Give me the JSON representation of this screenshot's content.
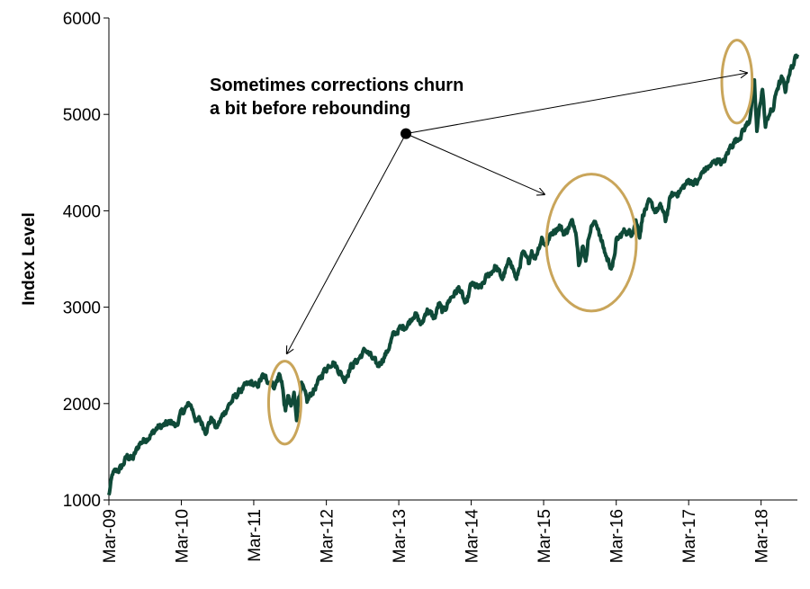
{
  "chart_data": {
    "type": "line",
    "title": "",
    "xlabel": "",
    "ylabel": "Index Level",
    "ylim": [
      1000,
      6000
    ],
    "xlim": [
      "2009-03-01",
      "2018-08-31"
    ],
    "yticks": [
      1000,
      2000,
      3000,
      4000,
      5000,
      6000
    ],
    "xticks": [
      {
        "date": "2009-03-01",
        "label": "Mar-09"
      },
      {
        "date": "2010-03-01",
        "label": "Mar-10"
      },
      {
        "date": "2011-03-01",
        "label": "Mar-11"
      },
      {
        "date": "2012-03-01",
        "label": "Mar-12"
      },
      {
        "date": "2013-03-01",
        "label": "Mar-13"
      },
      {
        "date": "2014-03-01",
        "label": "Mar-14"
      },
      {
        "date": "2015-03-01",
        "label": "Mar-15"
      },
      {
        "date": "2016-03-01",
        "label": "Mar-16"
      },
      {
        "date": "2017-03-01",
        "label": "Mar-17"
      },
      {
        "date": "2018-03-01",
        "label": "Mar-18"
      }
    ],
    "grid": false,
    "legend": "none",
    "line_color": "#0f4a38",
    "highlight_color": "#c9a55a",
    "series": [
      {
        "points": [
          [
            "2009-03-01",
            1050
          ],
          [
            "2009-03-20",
            1270
          ],
          [
            "2009-05-01",
            1330
          ],
          [
            "2009-06-01",
            1450
          ],
          [
            "2009-07-01",
            1430
          ],
          [
            "2009-08-01",
            1580
          ],
          [
            "2009-09-01",
            1630
          ],
          [
            "2009-10-01",
            1680
          ],
          [
            "2009-11-01",
            1750
          ],
          [
            "2009-12-01",
            1770
          ],
          [
            "2010-01-15",
            1810
          ],
          [
            "2010-02-01",
            1760
          ],
          [
            "2010-03-01",
            1900
          ],
          [
            "2010-04-15",
            2000
          ],
          [
            "2010-05-20",
            1800
          ],
          [
            "2010-06-01",
            1840
          ],
          [
            "2010-07-01",
            1720
          ],
          [
            "2010-08-01",
            1850
          ],
          [
            "2010-08-25",
            1740
          ],
          [
            "2010-10-01",
            1900
          ],
          [
            "2010-11-01",
            2000
          ],
          [
            "2010-12-01",
            2080
          ],
          [
            "2011-01-01",
            2150
          ],
          [
            "2011-02-15",
            2220
          ],
          [
            "2011-03-15",
            2170
          ],
          [
            "2011-04-15",
            2280
          ],
          [
            "2011-05-15",
            2240
          ],
          [
            "2011-06-15",
            2180
          ],
          [
            "2011-07-07",
            2300
          ],
          [
            "2011-07-20",
            2240
          ],
          [
            "2011-08-08",
            1900
          ],
          [
            "2011-08-20",
            2080
          ],
          [
            "2011-09-05",
            1950
          ],
          [
            "2011-09-20",
            2100
          ],
          [
            "2011-10-03",
            1860
          ],
          [
            "2011-10-15",
            2080
          ],
          [
            "2011-10-28",
            2200
          ],
          [
            "2011-11-25",
            2020
          ],
          [
            "2011-12-15",
            2100
          ],
          [
            "2012-01-15",
            2200
          ],
          [
            "2012-02-15",
            2330
          ],
          [
            "2012-04-01",
            2440
          ],
          [
            "2012-05-01",
            2350
          ],
          [
            "2012-06-01",
            2250
          ],
          [
            "2012-07-01",
            2380
          ],
          [
            "2012-08-01",
            2440
          ],
          [
            "2012-09-15",
            2560
          ],
          [
            "2012-11-15",
            2390
          ],
          [
            "2012-12-31",
            2530
          ],
          [
            "2013-01-31",
            2700
          ],
          [
            "2013-03-01",
            2770
          ],
          [
            "2013-04-15",
            2820
          ],
          [
            "2013-05-20",
            2940
          ],
          [
            "2013-06-24",
            2810
          ],
          [
            "2013-07-20",
            2980
          ],
          [
            "2013-08-28",
            2880
          ],
          [
            "2013-09-20",
            3040
          ],
          [
            "2013-10-08",
            2940
          ],
          [
            "2013-11-15",
            3090
          ],
          [
            "2013-12-31",
            3200
          ],
          [
            "2014-02-03",
            3010
          ],
          [
            "2014-03-01",
            3240
          ],
          [
            "2014-04-15",
            3190
          ],
          [
            "2014-05-15",
            3300
          ],
          [
            "2014-07-01",
            3420
          ],
          [
            "2014-08-05",
            3300
          ],
          [
            "2014-09-15",
            3500
          ],
          [
            "2014-10-15",
            3280
          ],
          [
            "2014-11-15",
            3560
          ],
          [
            "2014-12-15",
            3460
          ],
          [
            "2014-12-31",
            3600
          ],
          [
            "2015-01-15",
            3500
          ],
          [
            "2015-02-20",
            3720
          ],
          [
            "2015-03-10",
            3640
          ],
          [
            "2015-04-15",
            3780
          ],
          [
            "2015-05-20",
            3840
          ],
          [
            "2015-06-15",
            3760
          ],
          [
            "2015-07-20",
            3880
          ],
          [
            "2015-08-10",
            3820
          ],
          [
            "2015-08-25",
            3480
          ],
          [
            "2015-09-15",
            3620
          ],
          [
            "2015-09-29",
            3500
          ],
          [
            "2015-10-20",
            3800
          ],
          [
            "2015-11-05",
            3880
          ],
          [
            "2015-12-01",
            3830
          ],
          [
            "2015-12-15",
            3700
          ],
          [
            "2016-01-15",
            3500
          ],
          [
            "2016-02-11",
            3400
          ],
          [
            "2016-03-01",
            3680
          ],
          [
            "2016-04-15",
            3800
          ],
          [
            "2016-05-15",
            3760
          ],
          [
            "2016-06-08",
            3900
          ],
          [
            "2016-06-27",
            3750
          ],
          [
            "2016-07-15",
            3980
          ],
          [
            "2016-08-15",
            4080
          ],
          [
            "2016-09-15",
            4000
          ],
          [
            "2016-10-15",
            4040
          ],
          [
            "2016-11-04",
            3900
          ],
          [
            "2016-12-01",
            4150
          ],
          [
            "2017-01-15",
            4200
          ],
          [
            "2017-03-01",
            4310
          ],
          [
            "2017-04-15",
            4290
          ],
          [
            "2017-05-15",
            4420
          ],
          [
            "2017-06-15",
            4460
          ],
          [
            "2017-08-01",
            4540
          ],
          [
            "2017-08-20",
            4480
          ],
          [
            "2017-10-01",
            4680
          ],
          [
            "2017-11-15",
            4780
          ],
          [
            "2017-12-31",
            4930
          ],
          [
            "2018-01-26",
            5310
          ],
          [
            "2018-02-08",
            4820
          ],
          [
            "2018-02-25",
            5130
          ],
          [
            "2018-03-08",
            5270
          ],
          [
            "2018-03-23",
            4870
          ],
          [
            "2018-04-10",
            5010
          ],
          [
            "2018-05-01",
            5050
          ],
          [
            "2018-05-20",
            5270
          ],
          [
            "2018-06-15",
            5370
          ],
          [
            "2018-07-01",
            5250
          ],
          [
            "2018-07-20",
            5430
          ],
          [
            "2018-08-10",
            5520
          ],
          [
            "2018-08-31",
            5620
          ]
        ]
      }
    ],
    "annotations": [
      {
        "text": "Sometimes corrections churn",
        "line": 0
      },
      {
        "text": "a bit before rebounding",
        "line": 1
      }
    ],
    "annotation_origin": [
      "2013-04-06",
      4800
    ],
    "annotation_arrow_targets": [
      [
        "2011-08-15",
        2520
      ],
      [
        "2015-03-05",
        4170
      ],
      [
        "2017-12-20",
        5430
      ]
    ],
    "highlight_regions": [
      {
        "x_range": [
          "2011-05-15",
          "2011-10-25"
        ],
        "y_range": [
          1580,
          2440
        ]
      },
      {
        "x_range": [
          "2015-03-15",
          "2016-06-10"
        ],
        "y_range": [
          2960,
          4380
        ]
      },
      {
        "x_range": [
          "2017-08-15",
          "2018-01-15"
        ],
        "y_range": [
          4910,
          5770
        ]
      }
    ]
  }
}
